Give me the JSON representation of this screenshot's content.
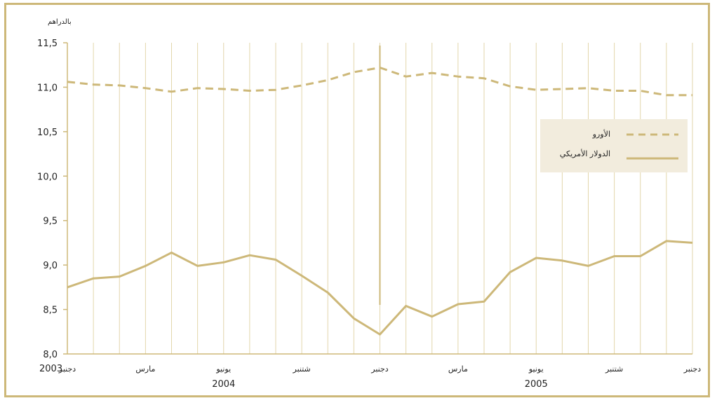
{
  "chart_data": {
    "type": "line",
    "ylabel": "بالدراهم",
    "ylim": [
      8.0,
      11.5
    ],
    "y_ticks": [
      "11,5",
      "11,0",
      "10,5",
      "10,0",
      "9,5",
      "9,0",
      "8,5",
      "8,0"
    ],
    "x": [
      "2003-12",
      "2004-01",
      "2004-02",
      "2004-03",
      "2004-04",
      "2004-05",
      "2004-06",
      "2004-07",
      "2004-08",
      "2004-09",
      "2004-10",
      "2004-11",
      "2004-12",
      "2005-01",
      "2005-02",
      "2005-03",
      "2005-04",
      "2005-05",
      "2005-06",
      "2005-07",
      "2005-08",
      "2005-09",
      "2005-10",
      "2005-11",
      "2005-12"
    ],
    "month_labels": [
      {
        "x": "2003-12",
        "label": "دجنبر"
      },
      {
        "x": "2004-03",
        "label": "مارس"
      },
      {
        "x": "2004-06",
        "label": "يونيو"
      },
      {
        "x": "2004-09",
        "label": "شتنبر"
      },
      {
        "x": "2004-12",
        "label": "دجنبر"
      },
      {
        "x": "2005-03",
        "label": "مارس"
      },
      {
        "x": "2005-06",
        "label": "يونيو"
      },
      {
        "x": "2005-09",
        "label": "شتنبر"
      },
      {
        "x": "2005-12",
        "label": "دجنبر"
      }
    ],
    "year_labels": [
      {
        "x": "2003-12",
        "label": "2003"
      },
      {
        "x": "2004-06",
        "label": "2004"
      },
      {
        "x": "2005-06",
        "label": "2005"
      }
    ],
    "year_divider": "2004-12",
    "series": [
      {
        "name": "الأورو",
        "style": "dashed",
        "color": "#cdb879",
        "values": [
          11.06,
          11.03,
          11.02,
          10.99,
          10.95,
          10.99,
          10.98,
          10.96,
          10.97,
          11.02,
          11.08,
          11.17,
          11.22,
          11.12,
          11.16,
          11.12,
          11.1,
          11.01,
          10.97,
          10.98,
          10.99,
          10.96,
          10.96,
          10.91,
          10.91
        ]
      },
      {
        "name": "الدولار الأمريكي",
        "style": "solid",
        "color": "#cdb879",
        "values": [
          8.75,
          8.85,
          8.87,
          8.99,
          9.14,
          8.99,
          9.03,
          9.11,
          9.06,
          8.88,
          8.69,
          8.4,
          8.22,
          8.54,
          8.42,
          8.56,
          8.59,
          8.92,
          9.08,
          9.05,
          8.99,
          9.1,
          9.1,
          9.27,
          9.25
        ]
      }
    ],
    "grid": true,
    "legend_position": "right"
  }
}
